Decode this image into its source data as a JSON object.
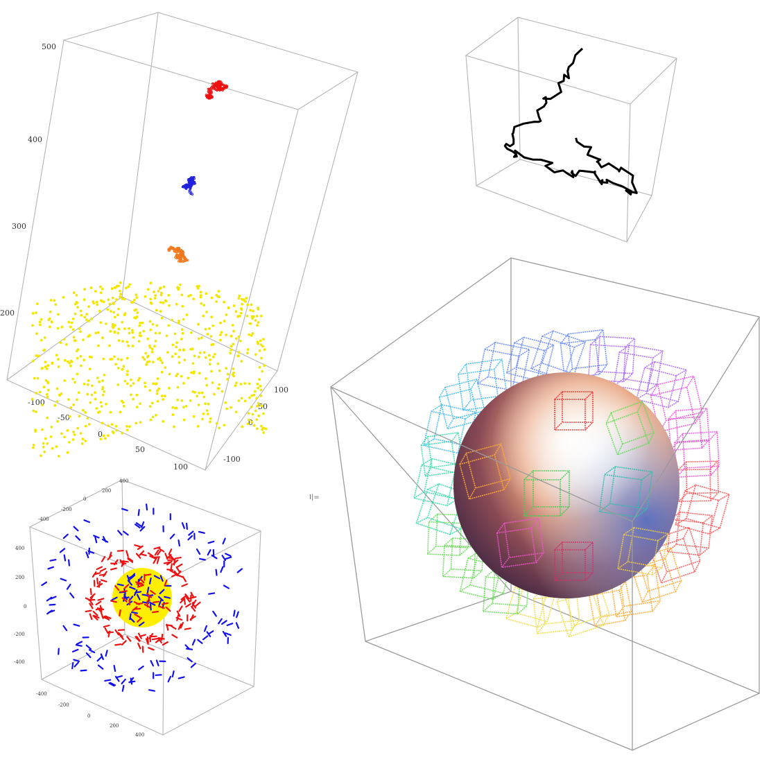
{
  "chart_data": [
    {
      "type": "scatter3d",
      "position": "top-left",
      "title": "",
      "z_ticks": [
        "500",
        "400",
        "300",
        "200"
      ],
      "x_ticks": [
        "-100",
        "-50",
        "0",
        "50",
        "100"
      ],
      "y_ticks": [
        "100",
        "50",
        "0",
        "-100"
      ],
      "series": [
        {
          "color": "#ee1111",
          "z_center": 440
        },
        {
          "color": "#2222dd",
          "z_center": 350
        },
        {
          "color": "#f07a20",
          "z_center": 270
        },
        {
          "color": "#f2e600",
          "z_center": 160
        }
      ]
    },
    {
      "type": "line3d",
      "position": "top-right",
      "title": "",
      "series": [
        {
          "color": "#000000"
        }
      ]
    },
    {
      "type": "scatter3d",
      "position": "bottom-left",
      "title": "",
      "ticks_top": [
        "400",
        "200",
        "0",
        "-200",
        "-400"
      ],
      "ticks_left": [
        "400",
        "200",
        "0",
        "-200",
        "-400"
      ],
      "ticks_bottom": [
        "-400",
        "-200",
        "0",
        "200",
        "400"
      ],
      "series": [
        {
          "color": "#ffee00",
          "shape": "sphere"
        },
        {
          "color": "#ee1111",
          "shape": "inner-shell"
        },
        {
          "color": "#1111ee",
          "shape": "outer-shell"
        }
      ]
    },
    {
      "type": "surface3d",
      "position": "bottom-right",
      "title": "",
      "series": [
        {
          "shape": "sphere with wireframe cubes"
        }
      ]
    }
  ],
  "cell_marker": "I|="
}
